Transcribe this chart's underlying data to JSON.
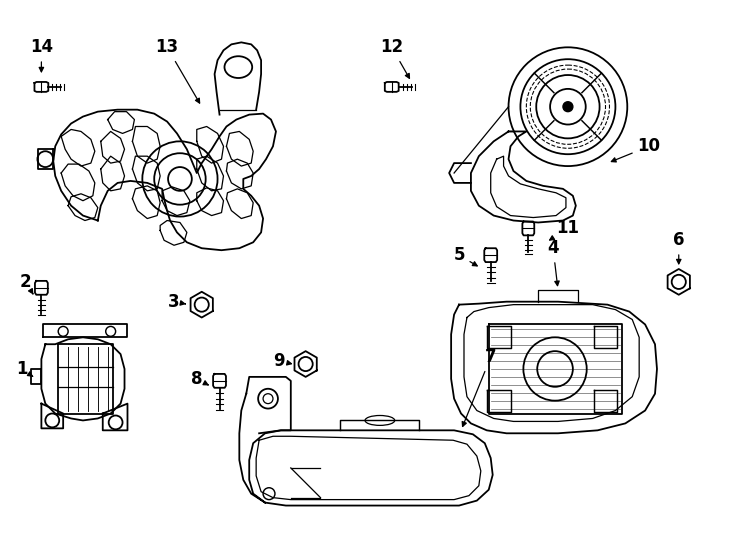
{
  "background_color": "#ffffff",
  "line_color": "#000000",
  "line_width": 1.3,
  "fig_width": 7.34,
  "fig_height": 5.4
}
